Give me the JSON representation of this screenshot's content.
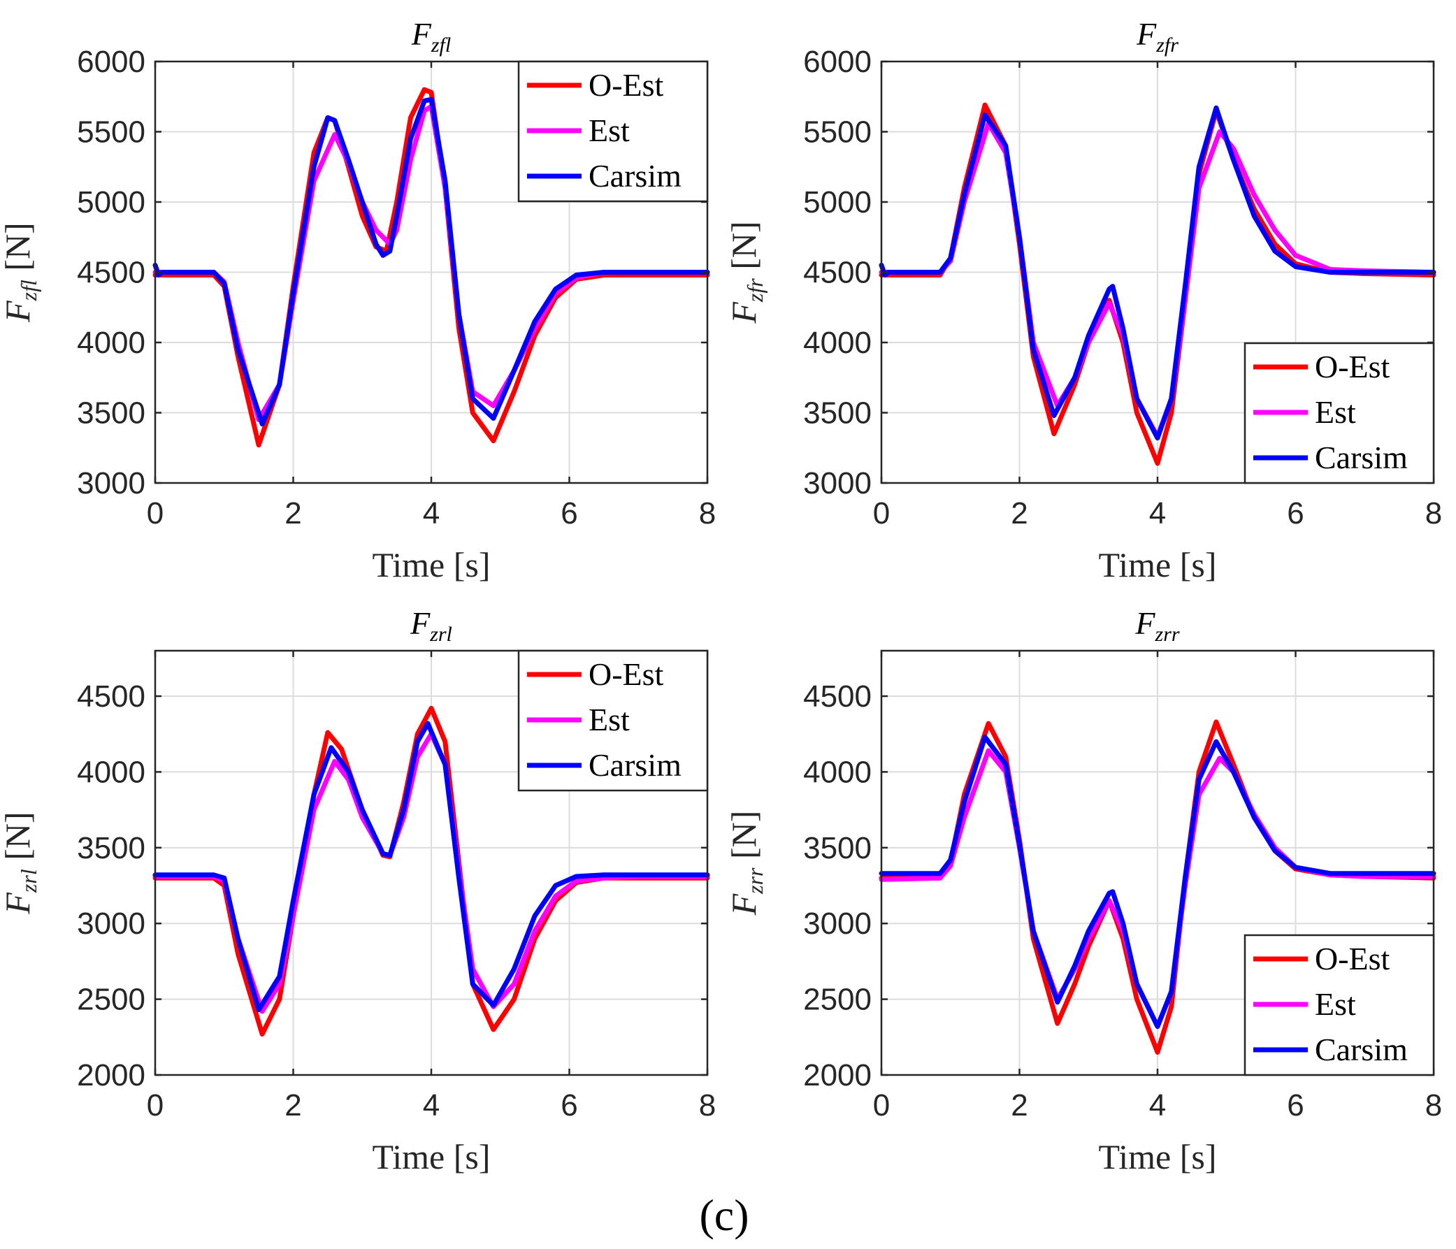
{
  "caption": "(c)",
  "colors": {
    "O-Est": "#ff0000",
    "Est": "#ff00ff",
    "Carsim": "#0000ff"
  },
  "chart_data": [
    {
      "type": "line",
      "title_main": "F",
      "title_sub": "zfl",
      "ylabel_main": "F",
      "ylabel_sub": "zfl",
      "ylabel_unit": "[N]",
      "xlabel": "Time [s]",
      "xlim": [
        0,
        8
      ],
      "ylim": [
        3000,
        6000
      ],
      "xticks": [
        0,
        2,
        4,
        6,
        8
      ],
      "yticks": [
        3000,
        3500,
        4000,
        4500,
        5000,
        5500,
        6000
      ],
      "legend_position": "top-right",
      "series": [
        {
          "name": "O-Est",
          "color": "#ff0000",
          "x": [
            0,
            0.85,
            1.0,
            1.2,
            1.5,
            1.8,
            2.0,
            2.3,
            2.5,
            2.6,
            2.8,
            3.0,
            3.2,
            3.35,
            3.5,
            3.7,
            3.9,
            4.0,
            4.2,
            4.4,
            4.6,
            4.9,
            5.2,
            5.5,
            5.8,
            6.1,
            6.5,
            7.0,
            8.0
          ],
          "y": [
            4480,
            4480,
            4400,
            3900,
            3270,
            3700,
            4400,
            5350,
            5600,
            5580,
            5250,
            4900,
            4680,
            4650,
            5000,
            5600,
            5800,
            5780,
            5100,
            4100,
            3500,
            3300,
            3650,
            4050,
            4320,
            4450,
            4480,
            4480,
            4480
          ]
        },
        {
          "name": "Est",
          "color": "#ff00ff",
          "x": [
            0,
            0.85,
            1.0,
            1.2,
            1.5,
            1.8,
            2.0,
            2.3,
            2.6,
            2.8,
            3.0,
            3.2,
            3.4,
            3.5,
            3.7,
            3.9,
            4.0,
            4.2,
            4.4,
            4.6,
            4.9,
            5.2,
            5.5,
            5.8,
            6.1,
            6.5,
            7.0,
            8.0
          ],
          "y": [
            4500,
            4500,
            4430,
            4000,
            3450,
            3700,
            4300,
            5150,
            5480,
            5280,
            5000,
            4800,
            4700,
            4800,
            5300,
            5650,
            5680,
            5100,
            4200,
            3650,
            3550,
            3800,
            4100,
            4350,
            4460,
            4500,
            4500,
            4500
          ]
        },
        {
          "name": "Carsim",
          "color": "#0000ff",
          "x": [
            0,
            0.05,
            0.1,
            0.85,
            1.0,
            1.2,
            1.55,
            1.8,
            2.0,
            2.3,
            2.5,
            2.6,
            2.8,
            3.0,
            3.2,
            3.3,
            3.4,
            3.5,
            3.7,
            3.9,
            4.0,
            4.2,
            4.4,
            4.6,
            4.9,
            5.2,
            5.5,
            5.8,
            6.1,
            6.5,
            7.0,
            8.0
          ],
          "y": [
            4550,
            4480,
            4500,
            4500,
            4420,
            3950,
            3420,
            3700,
            4350,
            5250,
            5600,
            5580,
            5300,
            5000,
            4700,
            4620,
            4650,
            4900,
            5450,
            5720,
            5730,
            5150,
            4200,
            3600,
            3460,
            3800,
            4150,
            4380,
            4480,
            4500,
            4500,
            4500
          ]
        }
      ]
    },
    {
      "type": "line",
      "title_main": "F",
      "title_sub": "zfr",
      "ylabel_main": "F",
      "ylabel_sub": "zfr",
      "ylabel_unit": "[N]",
      "xlabel": "Time [s]",
      "xlim": [
        0,
        8
      ],
      "ylim": [
        3000,
        6000
      ],
      "xticks": [
        0,
        2,
        4,
        6,
        8
      ],
      "yticks": [
        3000,
        3500,
        4000,
        4500,
        5000,
        5500,
        6000
      ],
      "legend_position": "bottom-right",
      "series": [
        {
          "name": "O-Est",
          "color": "#ff0000",
          "x": [
            0,
            0.85,
            1.0,
            1.2,
            1.5,
            1.8,
            2.0,
            2.2,
            2.5,
            2.8,
            3.0,
            3.3,
            3.5,
            3.7,
            4.0,
            4.2,
            4.4,
            4.6,
            4.85,
            5.1,
            5.4,
            5.7,
            6.0,
            6.5,
            7.0,
            8.0
          ],
          "y": [
            4480,
            4480,
            4600,
            5100,
            5690,
            5400,
            4700,
            3900,
            3350,
            3700,
            4000,
            4300,
            4000,
            3500,
            3140,
            3500,
            4300,
            5200,
            5650,
            5300,
            4950,
            4700,
            4560,
            4500,
            4490,
            4480
          ]
        },
        {
          "name": "Est",
          "color": "#ff00ff",
          "x": [
            0,
            0.85,
            1.0,
            1.2,
            1.55,
            1.8,
            2.0,
            2.2,
            2.55,
            2.8,
            3.0,
            3.3,
            3.5,
            3.7,
            4.0,
            4.2,
            4.4,
            4.6,
            4.9,
            5.1,
            5.4,
            5.7,
            6.0,
            6.5,
            7.0,
            8.0
          ],
          "y": [
            4500,
            4500,
            4580,
            5000,
            5560,
            5350,
            4750,
            4000,
            3550,
            3750,
            4000,
            4280,
            4050,
            3600,
            3330,
            3600,
            4300,
            5100,
            5500,
            5380,
            5050,
            4800,
            4620,
            4520,
            4510,
            4500
          ]
        },
        {
          "name": "Carsim",
          "color": "#0000ff",
          "x": [
            0,
            0.05,
            0.1,
            0.85,
            1.0,
            1.2,
            1.5,
            1.8,
            2.0,
            2.2,
            2.5,
            2.8,
            3.0,
            3.3,
            3.35,
            3.5,
            3.7,
            4.0,
            4.2,
            4.4,
            4.6,
            4.85,
            5.1,
            5.4,
            5.7,
            6.0,
            6.5,
            7.0,
            8.0
          ],
          "y": [
            4550,
            4480,
            4500,
            4500,
            4600,
            5050,
            5620,
            5400,
            4750,
            3950,
            3480,
            3750,
            4050,
            4380,
            4400,
            4100,
            3600,
            3320,
            3600,
            4400,
            5250,
            5670,
            5300,
            4900,
            4650,
            4540,
            4500,
            4500,
            4500
          ]
        }
      ]
    },
    {
      "type": "line",
      "title_main": "F",
      "title_sub": "zrl",
      "ylabel_main": "F",
      "ylabel_sub": "zrl",
      "ylabel_unit": "[N]",
      "xlabel": "Time [s]",
      "xlim": [
        0,
        8
      ],
      "ylim": [
        2000,
        4800
      ],
      "xticks": [
        0,
        2,
        4,
        6,
        8
      ],
      "yticks": [
        2000,
        2500,
        3000,
        3500,
        4000,
        4500
      ],
      "legend_position": "top-right",
      "series": [
        {
          "name": "O-Est",
          "color": "#ff0000",
          "x": [
            0,
            0.85,
            1.0,
            1.2,
            1.55,
            1.8,
            2.0,
            2.3,
            2.5,
            2.7,
            3.0,
            3.3,
            3.4,
            3.6,
            3.8,
            4.0,
            4.2,
            4.4,
            4.6,
            4.9,
            5.2,
            5.5,
            5.8,
            6.1,
            6.5,
            7.0,
            8.0
          ],
          "y": [
            3300,
            3300,
            3250,
            2800,
            2270,
            2500,
            3050,
            3850,
            4260,
            4150,
            3750,
            3450,
            3440,
            3800,
            4250,
            4420,
            4200,
            3400,
            2600,
            2300,
            2500,
            2900,
            3150,
            3270,
            3300,
            3300,
            3300
          ]
        },
        {
          "name": "Est",
          "color": "#ff00ff",
          "x": [
            0,
            0.85,
            1.0,
            1.2,
            1.55,
            1.8,
            2.0,
            2.3,
            2.6,
            2.8,
            3.0,
            3.3,
            3.4,
            3.6,
            3.8,
            4.0,
            4.2,
            4.4,
            4.6,
            4.9,
            5.2,
            5.5,
            5.8,
            6.1,
            6.5,
            7.0,
            8.0
          ],
          "y": [
            3310,
            3310,
            3280,
            2900,
            2420,
            2600,
            3050,
            3750,
            4070,
            3950,
            3700,
            3460,
            3450,
            3700,
            4100,
            4250,
            4050,
            3350,
            2700,
            2450,
            2600,
            2950,
            3180,
            3280,
            3300,
            3310,
            3310
          ]
        },
        {
          "name": "Carsim",
          "color": "#0000ff",
          "x": [
            0,
            0.85,
            1.0,
            1.2,
            1.5,
            1.8,
            2.0,
            2.3,
            2.55,
            2.8,
            3.0,
            3.3,
            3.4,
            3.6,
            3.8,
            3.95,
            4.2,
            4.4,
            4.6,
            4.9,
            5.2,
            5.5,
            5.8,
            6.1,
            6.5,
            7.0,
            8.0
          ],
          "y": [
            3320,
            3320,
            3300,
            2900,
            2430,
            2650,
            3150,
            3850,
            4160,
            4000,
            3750,
            3460,
            3450,
            3750,
            4200,
            4320,
            4050,
            3300,
            2600,
            2460,
            2700,
            3050,
            3250,
            3310,
            3320,
            3320,
            3320
          ]
        }
      ]
    },
    {
      "type": "line",
      "title_main": "F",
      "title_sub": "zrr",
      "ylabel_main": "F",
      "ylabel_sub": "zrr",
      "ylabel_unit": "[N]",
      "xlabel": "Time [s]",
      "xlim": [
        0,
        8
      ],
      "ylim": [
        2000,
        4800
      ],
      "xticks": [
        0,
        2,
        4,
        6,
        8
      ],
      "yticks": [
        2000,
        2500,
        3000,
        3500,
        4000,
        4500
      ],
      "legend_position": "bottom-right",
      "series": [
        {
          "name": "O-Est",
          "color": "#ff0000",
          "x": [
            0,
            0.85,
            1.0,
            1.2,
            1.55,
            1.8,
            2.0,
            2.2,
            2.55,
            2.8,
            3.0,
            3.3,
            3.5,
            3.7,
            4.0,
            4.2,
            4.4,
            4.6,
            4.85,
            5.1,
            5.4,
            5.7,
            6.0,
            6.5,
            7.0,
            8.0
          ],
          "y": [
            3300,
            3300,
            3400,
            3850,
            4320,
            4100,
            3550,
            2900,
            2340,
            2600,
            2850,
            3150,
            2900,
            2500,
            2150,
            2450,
            3300,
            4000,
            4330,
            4050,
            3700,
            3480,
            3360,
            3320,
            3310,
            3300
          ]
        },
        {
          "name": "Est",
          "color": "#ff00ff",
          "x": [
            0,
            0.85,
            1.0,
            1.2,
            1.55,
            1.8,
            2.0,
            2.2,
            2.55,
            2.8,
            3.0,
            3.3,
            3.5,
            3.7,
            4.0,
            4.2,
            4.4,
            4.6,
            4.9,
            5.1,
            5.4,
            5.7,
            6.0,
            6.5,
            7.0,
            8.0
          ],
          "y": [
            3290,
            3300,
            3380,
            3700,
            4140,
            4000,
            3500,
            2950,
            2500,
            2700,
            2900,
            3150,
            2950,
            2600,
            2320,
            2550,
            3250,
            3850,
            4090,
            4000,
            3720,
            3500,
            3370,
            3320,
            3310,
            3310
          ]
        },
        {
          "name": "Carsim",
          "color": "#0000ff",
          "x": [
            0,
            0.85,
            1.0,
            1.2,
            1.5,
            1.8,
            2.0,
            2.2,
            2.55,
            2.8,
            3.0,
            3.3,
            3.35,
            3.5,
            3.7,
            4.0,
            4.2,
            4.4,
            4.6,
            4.85,
            5.1,
            5.4,
            5.7,
            6.0,
            6.5,
            7.0,
            8.0
          ],
          "y": [
            3330,
            3330,
            3420,
            3800,
            4230,
            4050,
            3520,
            2950,
            2480,
            2720,
            2950,
            3200,
            3210,
            3000,
            2600,
            2320,
            2550,
            3300,
            3950,
            4200,
            4000,
            3700,
            3480,
            3370,
            3330,
            3330,
            3330
          ]
        }
      ]
    }
  ]
}
